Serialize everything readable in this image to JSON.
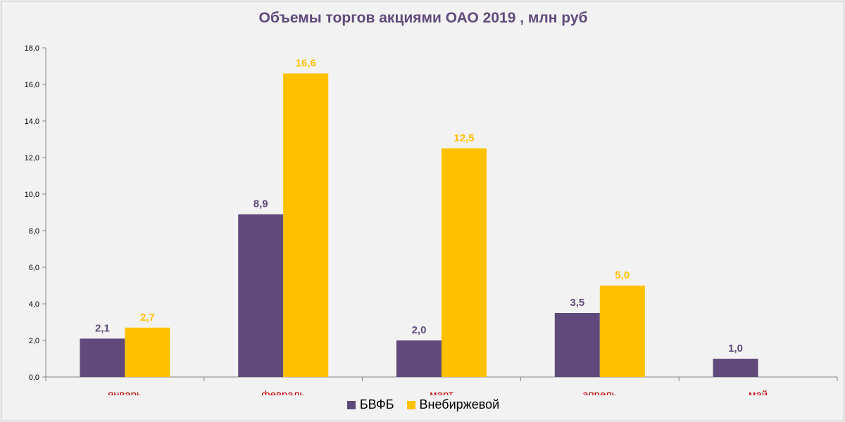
{
  "chart_data": {
    "type": "bar",
    "title": "Объемы торгов акциями ОАО 2019 , млн руб",
    "categories": [
      "январь",
      "февраль",
      "март",
      "апрель",
      "май"
    ],
    "series": [
      {
        "name": "БВФБ",
        "color": "#604a7b",
        "values": [
          2.1,
          8.9,
          2.0,
          3.5,
          1.0
        ],
        "labels": [
          "2,1",
          "8,9",
          "2,0",
          "3,5",
          "1,0"
        ]
      },
      {
        "name": "Внебиржевой",
        "color": "#ffc000",
        "values": [
          2.7,
          16.6,
          12.5,
          5.0,
          null
        ],
        "labels": [
          "2,7",
          "16,6",
          "12,5",
          "5,0",
          ""
        ]
      }
    ],
    "ylim": [
      0,
      18
    ],
    "yticks": [
      0,
      2,
      4,
      6,
      8,
      10,
      12,
      14,
      16,
      18
    ],
    "ytick_labels": [
      "0,0",
      "2,0",
      "4,0",
      "6,0",
      "8,0",
      "10,0",
      "12,0",
      "14,0",
      "16,0",
      "18,0"
    ],
    "xlabel": "",
    "ylabel": "",
    "grid": false,
    "legend": "bottom"
  }
}
